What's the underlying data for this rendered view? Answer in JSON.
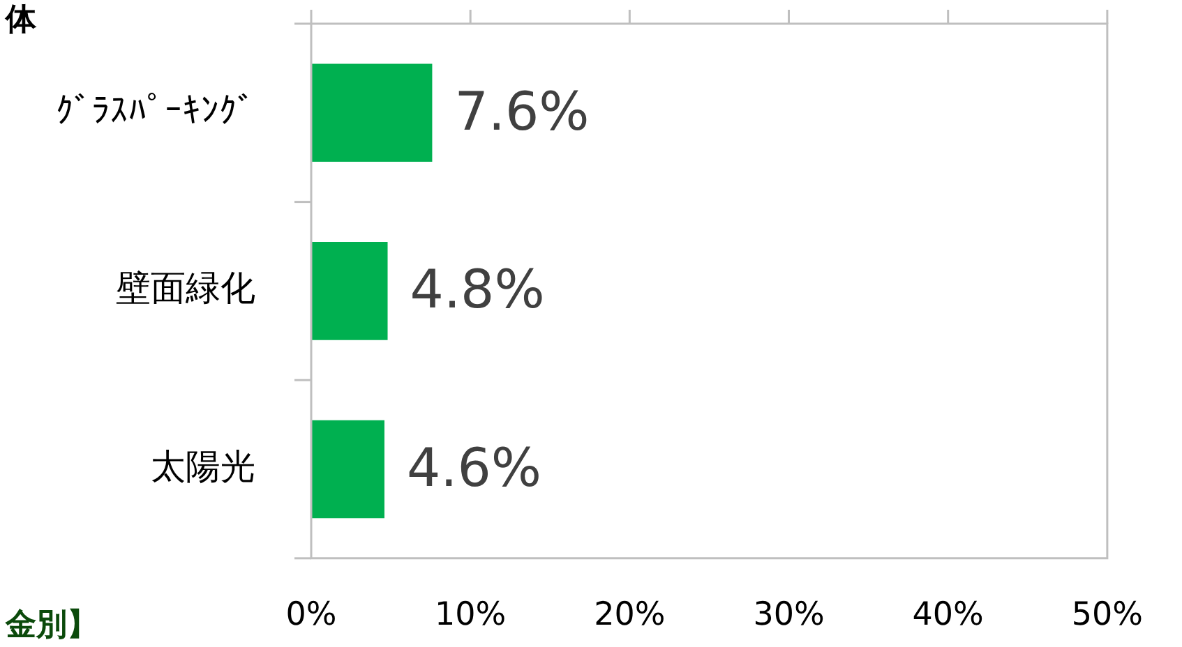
{
  "chart_data": {
    "type": "bar",
    "orientation": "horizontal",
    "title": "体",
    "annotations": [
      "金別】"
    ],
    "categories": [
      "ｸﾞﾗｽﾊﾟｰｷﾝｸﾞ",
      "壁面緑化",
      "太陽光"
    ],
    "values": [
      7.6,
      4.8,
      4.6
    ],
    "color": "#00b050",
    "value_labels": [
      "7.6%",
      "4.8%",
      "4.6%"
    ],
    "xlim": [
      0,
      50
    ],
    "xticks": [
      {
        "value": 0,
        "label": "0%"
      },
      {
        "value": 10,
        "label": "10%"
      },
      {
        "value": 20,
        "label": "20%"
      },
      {
        "value": 30,
        "label": "30%"
      },
      {
        "value": 40,
        "label": "40%"
      },
      {
        "value": 50,
        "label": "50%"
      }
    ],
    "grid": false
  }
}
